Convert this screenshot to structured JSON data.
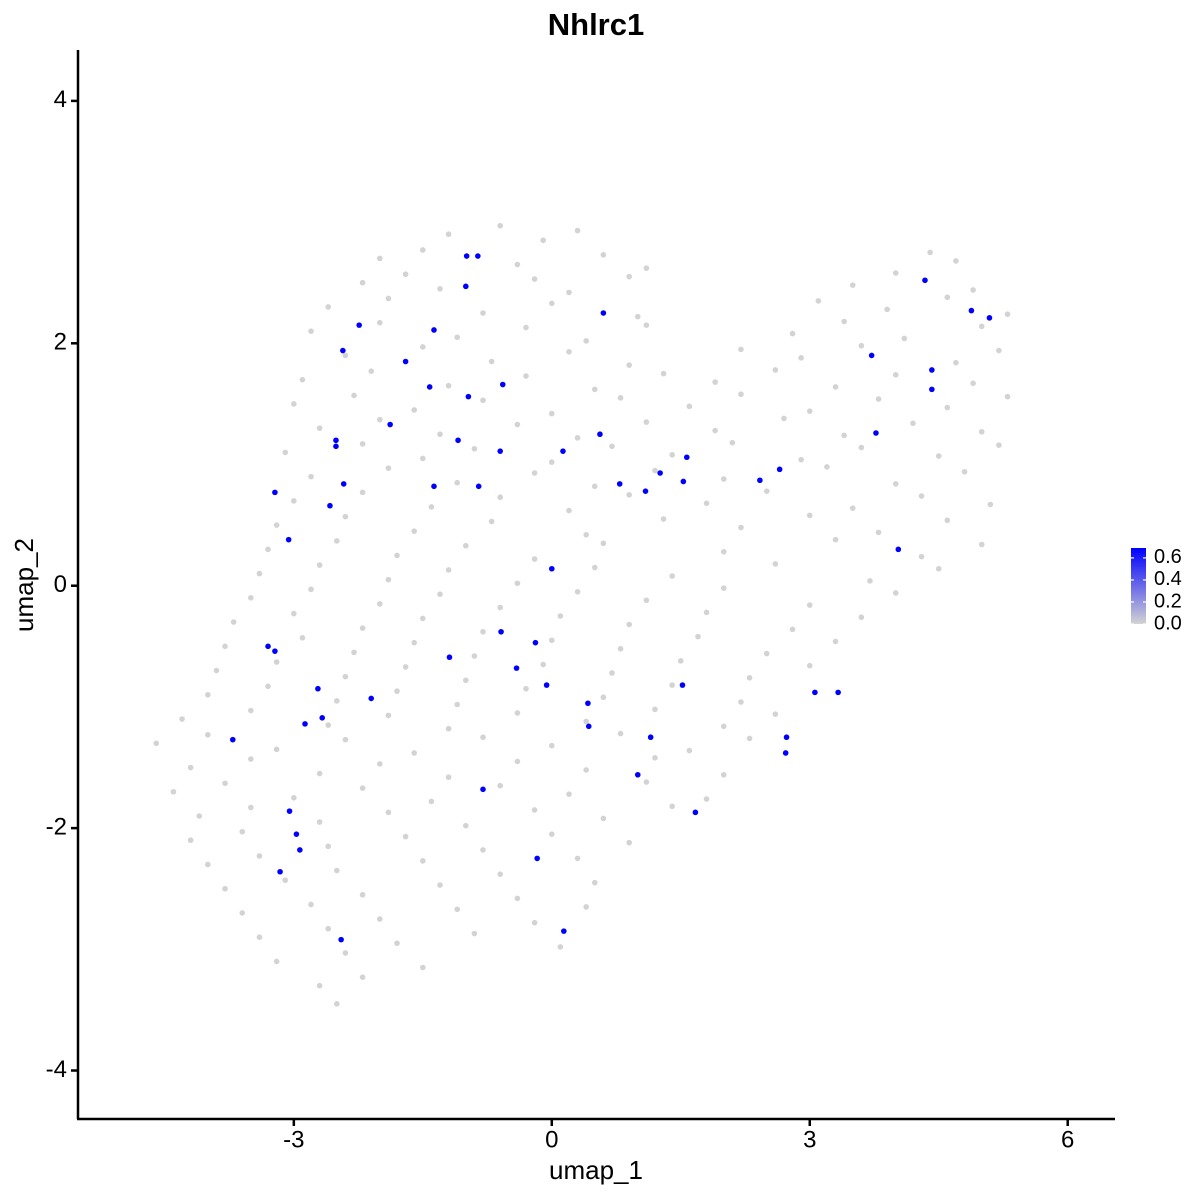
{
  "chart_data": {
    "type": "scatter",
    "title": "Nhlrc1",
    "x_label": "umap_1",
    "y_label": "umap_2",
    "xlim": [
      -5.51,
      6.55
    ],
    "xticks": [
      -3,
      0,
      3,
      6
    ],
    "ylim": [
      -4.4,
      4.42
    ],
    "yticks": [
      -4,
      -2,
      0,
      2,
      4
    ],
    "clim": [
      0,
      0.69
    ],
    "cticks": [
      {
        "value": 0,
        "label": "0.0"
      },
      0.2,
      0.4,
      0.6
    ],
    "colors": [
      "#d3d3d3",
      "#0000ff"
    ],
    "x": [
      -1.2,
      -0.6,
      -0.1,
      0.3,
      -2.0,
      -1.5,
      -0.4,
      0.6,
      1.1,
      4.4,
      4.7,
      -2.2,
      -1.7,
      -1.3,
      -0.2,
      0.2,
      0.9,
      3.5,
      4.0,
      4.9,
      -2.6,
      -1.9,
      -0.8,
      0.0,
      1.0,
      3.1,
      3.9,
      4.6,
      5.3,
      -2.8,
      -2.0,
      -1.1,
      -0.3,
      0.4,
      1.1,
      2.8,
      3.4,
      4.1,
      5.0,
      -2.4,
      -1.5,
      -0.7,
      0.2,
      0.9,
      2.2,
      2.9,
      3.6,
      4.7,
      5.2,
      -2.9,
      -2.1,
      -1.2,
      -0.3,
      0.5,
      1.3,
      1.9,
      2.6,
      3.3,
      4.0,
      4.9,
      -3.0,
      -2.3,
      -1.6,
      -0.8,
      0.0,
      0.8,
      1.6,
      2.2,
      3.0,
      3.8,
      4.6,
      5.3,
      -2.7,
      -2.0,
      -1.3,
      -0.4,
      0.3,
      1.1,
      1.9,
      2.7,
      3.4,
      4.2,
      5.0,
      -3.1,
      -2.2,
      -1.5,
      -0.9,
      0.0,
      0.7,
      1.4,
      2.1,
      2.9,
      3.6,
      4.5,
      5.2,
      -2.8,
      -1.9,
      -1.1,
      -0.2,
      0.5,
      1.2,
      2.0,
      3.2,
      4.0,
      4.8,
      -3.0,
      -2.2,
      -1.4,
      -0.6,
      0.2,
      0.9,
      1.8,
      2.5,
      3.5,
      4.3,
      5.1,
      -3.2,
      -2.4,
      -1.6,
      -0.7,
      0.4,
      1.3,
      2.2,
      3.0,
      3.8,
      4.6,
      -3.3,
      -2.5,
      -1.8,
      -1.0,
      -0.2,
      0.6,
      2.0,
      3.3,
      4.3,
      5.0,
      -3.4,
      -2.7,
      -1.9,
      -1.2,
      -0.4,
      0.5,
      1.4,
      2.6,
      3.7,
      4.5,
      -3.5,
      -2.8,
      -2.0,
      -1.3,
      -0.6,
      0.3,
      1.1,
      2.0,
      3.0,
      4.0,
      -3.7,
      -3.0,
      -2.2,
      -1.5,
      -0.8,
      0.1,
      0.9,
      1.8,
      2.8,
      3.6,
      -3.8,
      -2.9,
      -2.3,
      -1.6,
      -0.9,
      0.0,
      0.8,
      1.7,
      2.5,
      3.3,
      -3.9,
      -3.2,
      -2.4,
      -1.7,
      -1.0,
      -0.1,
      0.7,
      1.5,
      2.3,
      3.0,
      -4.0,
      -3.3,
      -2.5,
      -1.8,
      -1.1,
      -0.3,
      0.6,
      1.4,
      2.2,
      -4.3,
      -3.5,
      -2.6,
      -1.9,
      -1.2,
      -0.4,
      0.4,
      1.2,
      2.0,
      2.6,
      -4.6,
      -4.0,
      -3.2,
      -2.4,
      -1.6,
      -0.8,
      0.0,
      0.8,
      1.6,
      2.3,
      -4.2,
      -3.5,
      -2.7,
      -2.0,
      -1.2,
      -0.4,
      0.4,
      1.2,
      2.0,
      -4.4,
      -3.8,
      -3.0,
      -2.2,
      -1.4,
      -0.6,
      0.2,
      1.1,
      1.8,
      -4.1,
      -3.5,
      -2.7,
      -1.9,
      -1.0,
      -0.2,
      0.6,
      1.4,
      -4.2,
      -3.6,
      -2.6,
      -1.7,
      -0.8,
      0.0,
      0.9,
      -4.0,
      -3.4,
      -2.5,
      -1.5,
      -0.6,
      0.3,
      -3.8,
      -3.1,
      -2.2,
      -1.3,
      -0.4,
      0.5,
      -3.6,
      -2.8,
      -2.0,
      -1.1,
      -0.2,
      0.4,
      -3.4,
      -2.6,
      -1.8,
      -0.9,
      0.1,
      -3.2,
      -2.4,
      -1.5,
      -2.7,
      -2.2,
      -2.5,
      -0.99,
      -0.86,
      -1.0,
      0.6,
      -2.24,
      -1.37,
      -2.43,
      -1.7,
      -1.42,
      -0.57,
      -0.97,
      -1.88,
      -1.09,
      -2.51,
      -2.51,
      0.56,
      -0.6,
      0.13,
      1.57,
      1.26,
      -2.42,
      2.65,
      2.42,
      0.79,
      1.09,
      1.53,
      -1.37,
      -0.85,
      -2.58,
      -3.22,
      -3.06,
      0.0,
      4.03,
      3.77,
      3.72,
      4.42,
      4.42,
      4.34,
      4.88,
      5.09,
      -0.59,
      -0.19,
      -1.19,
      -0.41,
      -3.3,
      -3.22,
      -2.72,
      -0.06,
      1.52,
      0.42,
      -2.1,
      3.06,
      3.33,
      -2.87,
      -2.67,
      0.43,
      1.15,
      -3.71,
      2.73,
      2.72,
      1.0,
      -0.8,
      -3.05,
      1.67,
      -2.97,
      -2.93,
      -0.17,
      -3.16,
      0.14,
      -2.45
    ],
    "y": [
      2.9,
      2.97,
      2.85,
      2.93,
      2.7,
      2.77,
      2.65,
      2.73,
      2.62,
      2.75,
      2.68,
      2.5,
      2.57,
      2.45,
      2.53,
      2.42,
      2.55,
      2.48,
      2.58,
      2.44,
      2.3,
      2.37,
      2.25,
      2.33,
      2.22,
      2.35,
      2.28,
      2.38,
      2.24,
      2.1,
      2.17,
      2.05,
      2.13,
      2.02,
      2.15,
      2.08,
      2.18,
      2.04,
      2.14,
      1.9,
      1.97,
      1.85,
      1.93,
      1.82,
      1.95,
      1.88,
      1.98,
      1.84,
      1.94,
      1.7,
      1.77,
      1.65,
      1.73,
      1.62,
      1.75,
      1.68,
      1.78,
      1.64,
      1.74,
      1.67,
      1.5,
      1.57,
      1.45,
      1.53,
      1.42,
      1.55,
      1.48,
      1.58,
      1.44,
      1.54,
      1.47,
      1.56,
      1.3,
      1.37,
      1.25,
      1.33,
      1.22,
      1.35,
      1.28,
      1.38,
      1.24,
      1.34,
      1.27,
      1.1,
      1.17,
      1.05,
      1.13,
      1.02,
      1.15,
      1.08,
      1.18,
      1.04,
      1.14,
      1.07,
      1.16,
      0.9,
      0.97,
      0.85,
      0.93,
      0.82,
      0.95,
      0.88,
      0.98,
      0.84,
      0.94,
      0.7,
      0.77,
      0.65,
      0.73,
      0.62,
      0.75,
      0.68,
      0.78,
      0.64,
      0.74,
      0.67,
      0.5,
      0.57,
      0.45,
      0.53,
      0.42,
      0.55,
      0.48,
      0.58,
      0.44,
      0.54,
      0.3,
      0.37,
      0.25,
      0.33,
      0.22,
      0.35,
      0.28,
      0.38,
      0.24,
      0.34,
      0.1,
      0.17,
      0.05,
      0.13,
      0.02,
      0.15,
      0.08,
      0.18,
      0.04,
      0.14,
      -0.1,
      -0.03,
      -0.15,
      -0.07,
      -0.18,
      -0.05,
      -0.12,
      -0.02,
      -0.16,
      -0.06,
      -0.3,
      -0.23,
      -0.35,
      -0.27,
      -0.38,
      -0.25,
      -0.32,
      -0.22,
      -0.36,
      -0.26,
      -0.5,
      -0.43,
      -0.55,
      -0.47,
      -0.58,
      -0.45,
      -0.52,
      -0.42,
      -0.56,
      -0.46,
      -0.7,
      -0.63,
      -0.75,
      -0.67,
      -0.78,
      -0.65,
      -0.72,
      -0.62,
      -0.76,
      -0.66,
      -0.9,
      -0.83,
      -0.95,
      -0.87,
      -0.98,
      -0.85,
      -0.92,
      -0.82,
      -0.96,
      -1.1,
      -1.03,
      -1.15,
      -1.07,
      -1.18,
      -1.05,
      -1.12,
      -1.02,
      -1.16,
      -1.06,
      -1.3,
      -1.23,
      -1.35,
      -1.27,
      -1.38,
      -1.25,
      -1.32,
      -1.22,
      -1.36,
      -1.26,
      -1.5,
      -1.43,
      -1.55,
      -1.47,
      -1.58,
      -1.45,
      -1.52,
      -1.42,
      -1.56,
      -1.7,
      -1.63,
      -1.75,
      -1.67,
      -1.78,
      -1.65,
      -1.72,
      -1.62,
      -1.76,
      -1.9,
      -1.83,
      -1.95,
      -1.87,
      -1.98,
      -1.85,
      -1.92,
      -1.82,
      -2.1,
      -2.03,
      -2.15,
      -2.07,
      -2.18,
      -2.05,
      -2.12,
      -2.3,
      -2.23,
      -2.35,
      -2.27,
      -2.38,
      -2.25,
      -2.5,
      -2.43,
      -2.55,
      -2.47,
      -2.58,
      -2.45,
      -2.7,
      -2.63,
      -2.75,
      -2.67,
      -2.78,
      -2.65,
      -2.9,
      -2.83,
      -2.95,
      -2.87,
      -2.98,
      -3.1,
      -3.03,
      -3.15,
      -3.3,
      -3.23,
      -3.45,
      2.72,
      2.72,
      2.47,
      2.25,
      2.15,
      2.11,
      1.94,
      1.85,
      1.64,
      1.66,
      1.56,
      1.33,
      1.2,
      1.2,
      1.15,
      1.25,
      1.11,
      1.11,
      1.06,
      0.93,
      0.84,
      0.96,
      0.87,
      0.84,
      0.78,
      0.86,
      0.82,
      0.82,
      0.66,
      0.77,
      0.38,
      0.14,
      0.3,
      1.26,
      1.9,
      1.78,
      1.62,
      2.52,
      2.27,
      2.21,
      -0.38,
      -0.47,
      -0.59,
      -0.68,
      -0.5,
      -0.54,
      -0.85,
      -0.82,
      -0.82,
      -0.97,
      -0.93,
      -0.88,
      -0.88,
      -1.14,
      -1.09,
      -1.16,
      -1.25,
      -1.27,
      -1.25,
      -1.38,
      -1.56,
      -1.68,
      -1.86,
      -1.87,
      -2.05,
      -2.18,
      -2.25,
      -2.36,
      -2.85,
      -2.92
    ],
    "values": [
      0,
      0,
      0,
      0,
      0,
      0,
      0,
      0,
      0,
      0,
      0,
      0,
      0,
      0,
      0,
      0,
      0,
      0,
      0,
      0,
      0,
      0,
      0,
      0,
      0,
      0,
      0,
      0,
      0,
      0,
      0,
      0,
      0,
      0,
      0,
      0,
      0,
      0,
      0,
      0,
      0,
      0,
      0,
      0,
      0,
      0,
      0,
      0,
      0,
      0,
      0,
      0,
      0,
      0,
      0,
      0,
      0,
      0,
      0,
      0,
      0,
      0,
      0,
      0,
      0,
      0,
      0,
      0,
      0,
      0,
      0,
      0,
      0,
      0,
      0,
      0,
      0,
      0,
      0,
      0,
      0,
      0,
      0,
      0,
      0,
      0,
      0,
      0,
      0,
      0,
      0,
      0,
      0,
      0,
      0,
      0,
      0,
      0,
      0,
      0,
      0,
      0,
      0,
      0,
      0,
      0,
      0,
      0,
      0,
      0,
      0,
      0,
      0,
      0,
      0,
      0,
      0,
      0,
      0,
      0,
      0,
      0,
      0,
      0,
      0,
      0,
      0,
      0,
      0,
      0,
      0,
      0,
      0,
      0,
      0,
      0,
      0,
      0,
      0,
      0,
      0,
      0,
      0,
      0,
      0,
      0,
      0,
      0,
      0,
      0,
      0,
      0,
      0,
      0,
      0,
      0,
      0,
      0,
      0,
      0,
      0,
      0,
      0,
      0,
      0,
      0,
      0,
      0,
      0,
      0,
      0,
      0,
      0,
      0,
      0,
      0,
      0,
      0,
      0,
      0,
      0,
      0,
      0,
      0,
      0,
      0,
      0,
      0,
      0,
      0,
      0,
      0,
      0,
      0,
      0,
      0,
      0,
      0,
      0,
      0,
      0,
      0,
      0,
      0,
      0,
      0,
      0,
      0,
      0,
      0,
      0,
      0,
      0,
      0,
      0,
      0,
      0,
      0,
      0,
      0,
      0,
      0,
      0,
      0,
      0,
      0,
      0,
      0,
      0,
      0,
      0,
      0,
      0,
      0,
      0,
      0,
      0,
      0,
      0,
      0,
      0,
      0,
      0,
      0,
      0,
      0,
      0,
      0,
      0,
      0,
      0,
      0,
      0,
      0,
      0,
      0,
      0,
      0,
      0,
      0,
      0,
      0,
      0,
      0,
      0,
      0,
      0,
      0,
      0,
      0,
      0,
      0,
      0,
      0,
      0,
      0,
      0,
      0.69,
      0.69,
      0.69,
      0.69,
      0.69,
      0.69,
      0.69,
      0.69,
      0.69,
      0.69,
      0.69,
      0.69,
      0.69,
      0.69,
      0.69,
      0.69,
      0.69,
      0.69,
      0.69,
      0.69,
      0.69,
      0.69,
      0.69,
      0.69,
      0.69,
      0.69,
      0.69,
      0.69,
      0.69,
      0.69,
      0.69,
      0.69,
      0.69,
      0.69,
      0.69,
      0.69,
      0.69,
      0.69,
      0.69,
      0.69,
      0.69,
      0.69,
      0.69,
      0.69,
      0.69,
      0.69,
      0.69,
      0.69,
      0.69,
      0.69,
      0.69,
      0.69,
      0.69,
      0.69,
      0.69,
      0.69,
      0.69,
      0.69,
      0.69,
      0.69,
      0.69,
      0.69,
      0.69,
      0.69,
      0.69,
      0.69,
      0.69,
      0.69,
      0.69,
      0.69
    ]
  }
}
